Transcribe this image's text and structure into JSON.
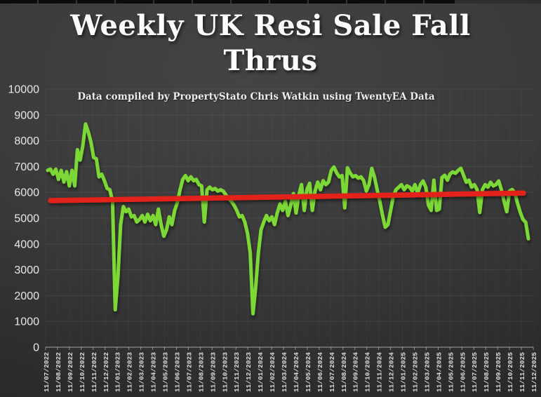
{
  "title": {
    "line1": "Weekly UK Resi Sale Fall",
    "line2": "Thrus",
    "full": "Weekly UK Resi Sale Fall Thrus"
  },
  "subtitle": "Data compiled by PropertyStato Chris Watkin using TwentyEA Data",
  "chart_data": {
    "type": "line",
    "title": "Weekly UK Resi Sale Fall Thrus",
    "xlabel": "",
    "ylabel": "",
    "ylim": [
      0,
      10000
    ],
    "grid": "horizontal (faint) with very faint monthly verticals",
    "legend_position": "none",
    "y_ticks": [
      0,
      1000,
      2000,
      3000,
      4000,
      5000,
      6000,
      7000,
      8000,
      9000,
      10000
    ],
    "x_labels": [
      "11/07/2022",
      "11/08/2022",
      "11/09/2022",
      "11/10/2022",
      "11/11/2022",
      "11/12/2022",
      "11/01/2023",
      "11/02/2023",
      "11/03/2023",
      "11/04/2023",
      "11/05/2023",
      "11/06/2023",
      "11/07/2023",
      "11/08/2023",
      "11/09/2023",
      "11/10/2023",
      "11/11/2023",
      "11/12/2023",
      "11/01/2024",
      "11/02/2024",
      "11/03/2024",
      "11/04/2024",
      "11/05/2024",
      "11/06/2024",
      "11/07/2024",
      "11/08/2024",
      "11/09/2024",
      "11/10/2024",
      "11/11/2024",
      "11/12/2024",
      "11/01/2025",
      "11/02/2025",
      "11/03/2025",
      "11/04/2025",
      "11/05/2025",
      "11/06/2025",
      "11/07/2025",
      "11/08/2025",
      "11/09/2025",
      "11/10/2025",
      "11/11/2025",
      "11/12/2025"
    ],
    "series": [
      {
        "name": "Weekly UK residential sale fall throughs",
        "type": "line",
        "color": "#7cd936",
        "frequency": "weekly",
        "values": [
          6850,
          6900,
          6700,
          6900,
          6500,
          6850,
          6400,
          6800,
          6250,
          6850,
          6250,
          7650,
          7250,
          7800,
          8650,
          8350,
          7950,
          7350,
          7300,
          6600,
          6700,
          6450,
          6150,
          6100,
          5650,
          1450,
          2750,
          4750,
          5450,
          5250,
          5350,
          5050,
          5100,
          4850,
          4950,
          5100,
          4850,
          5150,
          4900,
          5100,
          4750,
          5350,
          4750,
          4300,
          4550,
          5050,
          4750,
          5300,
          5600,
          6100,
          6500,
          6650,
          6450,
          6600,
          6450,
          6500,
          6300,
          6250,
          4850,
          6100,
          6200,
          6100,
          6150,
          6050,
          6100,
          6050,
          5900,
          5750,
          5650,
          5500,
          5300,
          5050,
          5100,
          4850,
          4400,
          3650,
          1300,
          2300,
          3650,
          4550,
          4850,
          5100,
          4900,
          5050,
          4750,
          5200,
          5550,
          5300,
          5650,
          5100,
          5500,
          5950,
          5200,
          5900,
          6300,
          5300,
          6100,
          6350,
          5300,
          6050,
          6400,
          6100,
          6450,
          6300,
          6400,
          6850,
          6980,
          6750,
          6600,
          6650,
          5400,
          6950,
          6750,
          6600,
          6650,
          6550,
          6600,
          6450,
          6050,
          6300,
          6930,
          6600,
          6100,
          5650,
          5100,
          4650,
          4750,
          5300,
          5850,
          6100,
          6200,
          6300,
          6100,
          6250,
          6200,
          6050,
          6300,
          5950,
          6300,
          6440,
          6200,
          5500,
          5300,
          6470,
          5300,
          5350,
          6580,
          6660,
          6470,
          6710,
          6790,
          6740,
          6850,
          6930,
          6660,
          6390,
          6470,
          6200,
          6300,
          6110,
          5220,
          6110,
          6300,
          6200,
          6390,
          6250,
          6300,
          6440,
          6110,
          5650,
          5250,
          6050,
          6110,
          5980,
          5570,
          5220,
          4950,
          4840,
          4200
        ]
      },
      {
        "name": "Trend line",
        "type": "trend",
        "color": "#e3211b",
        "start_value": 5680,
        "end_value": 5970
      }
    ]
  },
  "colors": {
    "background": "#3a3a3a",
    "series_green": "#7cd936",
    "trend_red": "#e3211b",
    "axis_text": "#e8e8e8",
    "gridline": "#4b4b4b"
  }
}
